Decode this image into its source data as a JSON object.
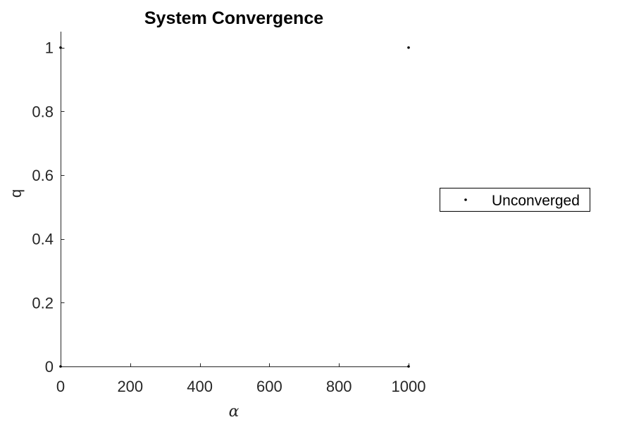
{
  "chart_data": {
    "type": "scatter",
    "title": "System Convergence",
    "xlabel": "α",
    "ylabel": "q",
    "xlim": [
      0,
      1000
    ],
    "ylim": [
      0,
      1.05
    ],
    "xticks": [
      0,
      200,
      400,
      600,
      800,
      1000
    ],
    "xtick_labels": [
      "0",
      "200",
      "400",
      "600",
      "800",
      "1000"
    ],
    "yticks": [
      0,
      0.2,
      0.4,
      0.6,
      0.8,
      1
    ],
    "ytick_labels": [
      "0",
      "0.2",
      "0.4",
      "0.6",
      "0.8",
      "1"
    ],
    "grid": false,
    "legend_position": "outside-right",
    "series": [
      {
        "name": "Unconverged",
        "marker": "point",
        "color": "#000000",
        "points": [
          {
            "x": 0,
            "y": 1
          },
          {
            "x": 1000,
            "y": 1
          },
          {
            "x": 0,
            "y": 0
          },
          {
            "x": 1000,
            "y": 0
          }
        ]
      }
    ]
  },
  "colors": {
    "axis": "#262626",
    "marker": "#000000",
    "background": "#ffffff"
  }
}
